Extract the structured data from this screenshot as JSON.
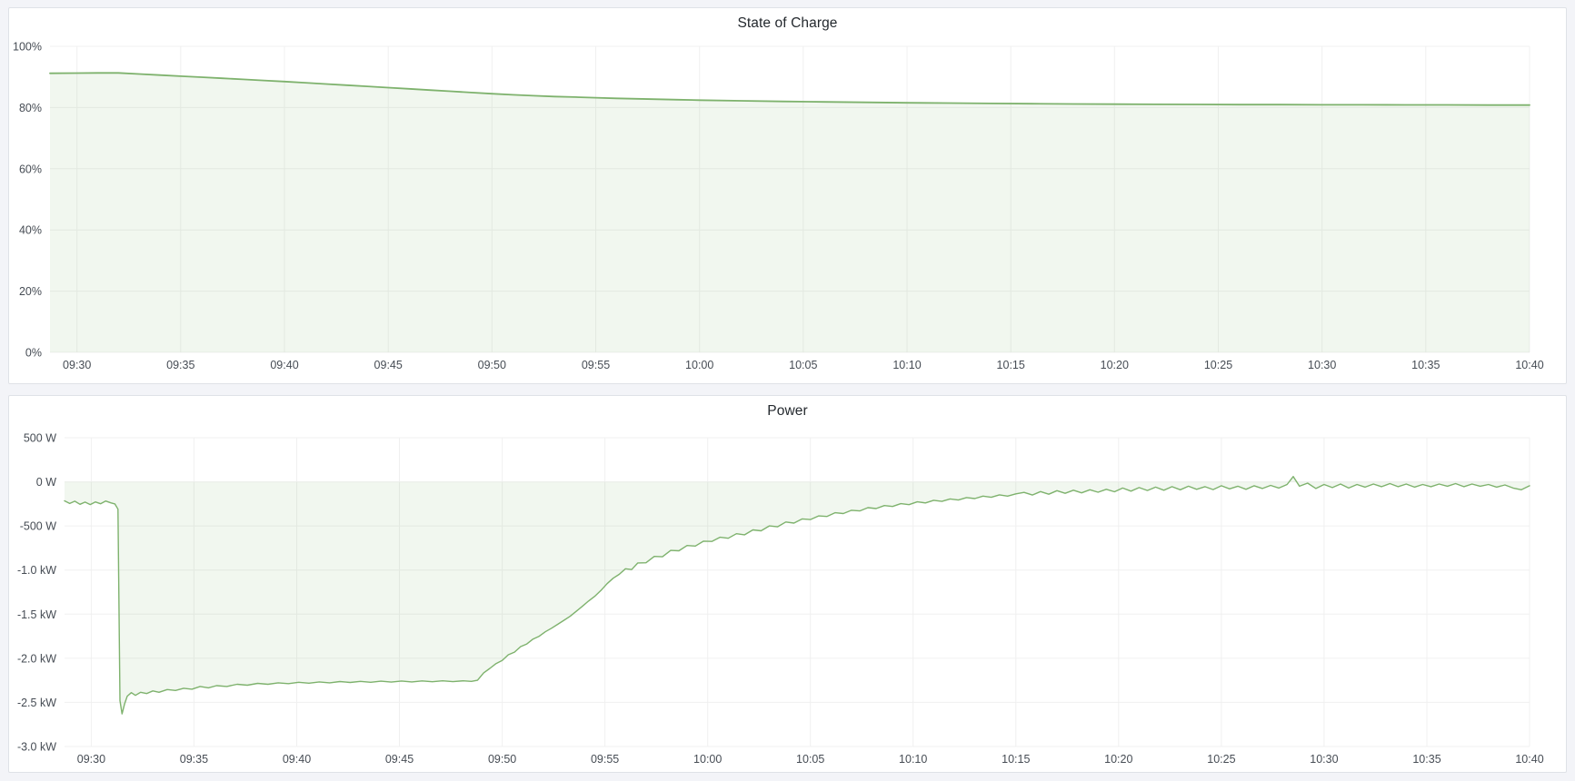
{
  "page": {
    "background_color": "#f3f4f8",
    "panel_background": "#ffffff",
    "panel_border_color": "#dfe2e7",
    "accent_green": "#7eb26d"
  },
  "chart_data": [
    {
      "type": "area",
      "title": "State of Charge",
      "unit": "percent",
      "line_color": "#7eb26d",
      "fill_color": "rgba(126,178,109,0.11)",
      "grid_color": "#f0f0f0",
      "axis_text_color": "#464c54",
      "grid": true,
      "legend_position": "none",
      "ylim": [
        0,
        100
      ],
      "x_range_minutes": [
        -1.3,
        70
      ],
      "baseline": 0,
      "y_ticks": [
        {
          "value": 100,
          "label": "100%"
        },
        {
          "value": 80,
          "label": "80%"
        },
        {
          "value": 60,
          "label": "60%"
        },
        {
          "value": 40,
          "label": "40%"
        },
        {
          "value": 20,
          "label": "20%"
        },
        {
          "value": 0,
          "label": "0%"
        }
      ],
      "x_tick_minutes": [
        0,
        5,
        10,
        15,
        20,
        25,
        30,
        35,
        40,
        45,
        50,
        55,
        60,
        65,
        70
      ],
      "x_tick_labels": [
        "09:30",
        "09:35",
        "09:40",
        "09:45",
        "09:50",
        "09:55",
        "10:00",
        "10:05",
        "10:10",
        "10:15",
        "10:20",
        "10:25",
        "10:30",
        "10:35",
        "10:40"
      ],
      "series": [
        {
          "name": "State of Charge",
          "points": [
            [
              -1.3,
              91.2
            ],
            [
              0,
              91.25
            ],
            [
              1,
              91.3
            ],
            [
              2,
              91.3
            ],
            [
              3,
              90.95
            ],
            [
              4,
              90.6
            ],
            [
              5,
              90.25
            ],
            [
              6,
              89.9
            ],
            [
              7,
              89.55
            ],
            [
              8,
              89.2
            ],
            [
              9,
              88.85
            ],
            [
              10,
              88.5
            ],
            [
              11,
              88.1
            ],
            [
              12,
              87.7
            ],
            [
              13,
              87.3
            ],
            [
              14,
              86.9
            ],
            [
              15,
              86.5
            ],
            [
              16,
              86.1
            ],
            [
              17,
              85.7
            ],
            [
              18,
              85.3
            ],
            [
              19,
              84.9
            ],
            [
              20,
              84.5
            ],
            [
              21,
              84.15
            ],
            [
              22,
              83.85
            ],
            [
              23,
              83.6
            ],
            [
              24,
              83.4
            ],
            [
              25,
              83.2
            ],
            [
              26,
              83.0
            ],
            [
              27,
              82.85
            ],
            [
              28,
              82.7
            ],
            [
              29,
              82.55
            ],
            [
              30,
              82.4
            ],
            [
              32,
              82.2
            ],
            [
              34,
              82.0
            ],
            [
              36,
              81.85
            ],
            [
              38,
              81.7
            ],
            [
              40,
              81.55
            ],
            [
              42,
              81.45
            ],
            [
              44,
              81.35
            ],
            [
              46,
              81.25
            ],
            [
              48,
              81.15
            ],
            [
              50,
              81.1
            ],
            [
              52,
              81.05
            ],
            [
              54,
              81.0
            ],
            [
              56,
              80.95
            ],
            [
              58,
              80.95
            ],
            [
              60,
              80.9
            ],
            [
              62,
              80.9
            ],
            [
              64,
              80.85
            ],
            [
              66,
              80.85
            ],
            [
              68,
              80.8
            ],
            [
              70,
              80.8
            ]
          ]
        }
      ]
    },
    {
      "type": "area",
      "title": "Power",
      "unit": "watt",
      "line_color": "#7eb26d",
      "fill_color": "rgba(126,178,109,0.11)",
      "grid_color": "#f0f0f0",
      "axis_text_color": "#464c54",
      "grid": true,
      "legend_position": "none",
      "ylim": [
        -3000,
        500
      ],
      "x_range_minutes": [
        -1.3,
        70
      ],
      "baseline": 0,
      "y_ticks": [
        {
          "value": 500,
          "label": "500 W"
        },
        {
          "value": 0,
          "label": "0 W"
        },
        {
          "value": -500,
          "label": "-500 W"
        },
        {
          "value": -1000,
          "label": "-1.0 kW"
        },
        {
          "value": -1500,
          "label": "-1.5 kW"
        },
        {
          "value": -2000,
          "label": "-2.0 kW"
        },
        {
          "value": -2500,
          "label": "-2.5 kW"
        },
        {
          "value": -3000,
          "label": "-3.0 kW"
        }
      ],
      "x_tick_minutes": [
        0,
        5,
        10,
        15,
        20,
        25,
        30,
        35,
        40,
        45,
        50,
        55,
        60,
        65,
        70
      ],
      "x_tick_labels": [
        "09:30",
        "09:35",
        "09:40",
        "09:45",
        "09:50",
        "09:55",
        "10:00",
        "10:05",
        "10:10",
        "10:15",
        "10:20",
        "10:25",
        "10:30",
        "10:35",
        "10:40"
      ],
      "series": [
        {
          "name": "Power",
          "points": [
            [
              -1.3,
              -215
            ],
            [
              -1.05,
              -245
            ],
            [
              -0.8,
              -220
            ],
            [
              -0.55,
              -255
            ],
            [
              -0.3,
              -230
            ],
            [
              -0.05,
              -258
            ],
            [
              0.2,
              -228
            ],
            [
              0.45,
              -248
            ],
            [
              0.7,
              -218
            ],
            [
              0.95,
              -238
            ],
            [
              1.15,
              -250
            ],
            [
              1.3,
              -310
            ],
            [
              1.4,
              -2480
            ],
            [
              1.5,
              -2630
            ],
            [
              1.62,
              -2520
            ],
            [
              1.75,
              -2430
            ],
            [
              1.95,
              -2390
            ],
            [
              2.15,
              -2420
            ],
            [
              2.4,
              -2385
            ],
            [
              2.7,
              -2400
            ],
            [
              3.0,
              -2370
            ],
            [
              3.3,
              -2385
            ],
            [
              3.7,
              -2355
            ],
            [
              4.1,
              -2365
            ],
            [
              4.5,
              -2340
            ],
            [
              4.9,
              -2350
            ],
            [
              5.3,
              -2320
            ],
            [
              5.7,
              -2335
            ],
            [
              6.1,
              -2310
            ],
            [
              6.6,
              -2320
            ],
            [
              7.1,
              -2295
            ],
            [
              7.6,
              -2305
            ],
            [
              8.1,
              -2285
            ],
            [
              8.6,
              -2295
            ],
            [
              9.1,
              -2278
            ],
            [
              9.6,
              -2288
            ],
            [
              10.1,
              -2272
            ],
            [
              10.6,
              -2282
            ],
            [
              11.1,
              -2268
            ],
            [
              11.6,
              -2278
            ],
            [
              12.1,
              -2264
            ],
            [
              12.6,
              -2274
            ],
            [
              13.1,
              -2262
            ],
            [
              13.6,
              -2272
            ],
            [
              14.1,
              -2260
            ],
            [
              14.6,
              -2270
            ],
            [
              15.1,
              -2258
            ],
            [
              15.6,
              -2268
            ],
            [
              16.1,
              -2257
            ],
            [
              16.6,
              -2266
            ],
            [
              17.1,
              -2256
            ],
            [
              17.6,
              -2265
            ],
            [
              18.1,
              -2256
            ],
            [
              18.5,
              -2262
            ],
            [
              18.8,
              -2250
            ],
            [
              19.1,
              -2165
            ],
            [
              19.4,
              -2115
            ],
            [
              19.7,
              -2060
            ],
            [
              20.0,
              -2025
            ],
            [
              20.3,
              -1960
            ],
            [
              20.6,
              -1930
            ],
            [
              20.9,
              -1868
            ],
            [
              21.2,
              -1838
            ],
            [
              21.5,
              -1782
            ],
            [
              21.8,
              -1750
            ],
            [
              22.1,
              -1700
            ],
            [
              22.4,
              -1660
            ],
            [
              22.7,
              -1615
            ],
            [
              23.0,
              -1570
            ],
            [
              23.3,
              -1525
            ],
            [
              23.6,
              -1468
            ],
            [
              23.9,
              -1412
            ],
            [
              24.2,
              -1352
            ],
            [
              24.5,
              -1298
            ],
            [
              24.8,
              -1232
            ],
            [
              25.1,
              -1155
            ],
            [
              25.4,
              -1092
            ],
            [
              25.7,
              -1048
            ],
            [
              26.0,
              -985
            ],
            [
              26.3,
              -995
            ],
            [
              26.6,
              -920
            ],
            [
              27.0,
              -918
            ],
            [
              27.4,
              -845
            ],
            [
              27.8,
              -850
            ],
            [
              28.2,
              -778
            ],
            [
              28.6,
              -782
            ],
            [
              29.0,
              -722
            ],
            [
              29.4,
              -728
            ],
            [
              29.8,
              -672
            ],
            [
              30.2,
              -676
            ],
            [
              30.6,
              -628
            ],
            [
              31.0,
              -640
            ],
            [
              31.4,
              -588
            ],
            [
              31.8,
              -600
            ],
            [
              32.2,
              -545
            ],
            [
              32.6,
              -555
            ],
            [
              33.0,
              -500
            ],
            [
              33.4,
              -510
            ],
            [
              33.8,
              -455
            ],
            [
              34.2,
              -468
            ],
            [
              34.6,
              -420
            ],
            [
              35.0,
              -428
            ],
            [
              35.4,
              -386
            ],
            [
              35.8,
              -393
            ],
            [
              36.2,
              -350
            ],
            [
              36.6,
              -360
            ],
            [
              37.0,
              -322
            ],
            [
              37.4,
              -330
            ],
            [
              37.8,
              -293
            ],
            [
              38.2,
              -303
            ],
            [
              38.6,
              -269
            ],
            [
              39.0,
              -279
            ],
            [
              39.4,
              -247
            ],
            [
              39.8,
              -259
            ],
            [
              40.2,
              -227
            ],
            [
              40.6,
              -239
            ],
            [
              41.0,
              -209
            ],
            [
              41.4,
              -222
            ],
            [
              41.8,
              -194
            ],
            [
              42.2,
              -206
            ],
            [
              42.6,
              -178
            ],
            [
              43.0,
              -190
            ],
            [
              43.4,
              -162
            ],
            [
              43.8,
              -175
            ],
            [
              44.2,
              -148
            ],
            [
              44.6,
              -162
            ],
            [
              45.0,
              -136
            ],
            [
              45.4,
              -120
            ],
            [
              45.8,
              -150
            ],
            [
              46.2,
              -110
            ],
            [
              46.6,
              -140
            ],
            [
              47.0,
              -100
            ],
            [
              47.4,
              -130
            ],
            [
              47.8,
              -95
            ],
            [
              48.2,
              -125
            ],
            [
              48.6,
              -90
            ],
            [
              49.0,
              -118
            ],
            [
              49.4,
              -85
            ],
            [
              49.8,
              -112
            ],
            [
              50.2,
              -70
            ],
            [
              50.6,
              -105
            ],
            [
              51.0,
              -65
            ],
            [
              51.4,
              -98
            ],
            [
              51.8,
              -60
            ],
            [
              52.2,
              -95
            ],
            [
              52.6,
              -55
            ],
            [
              53.0,
              -90
            ],
            [
              53.4,
              -50
            ],
            [
              53.8,
              -85
            ],
            [
              54.2,
              -55
            ],
            [
              54.6,
              -88
            ],
            [
              55.0,
              -45
            ],
            [
              55.4,
              -80
            ],
            [
              55.8,
              -50
            ],
            [
              56.2,
              -85
            ],
            [
              56.6,
              -45
            ],
            [
              57.0,
              -75
            ],
            [
              57.4,
              -40
            ],
            [
              57.8,
              -70
            ],
            [
              58.2,
              -30
            ],
            [
              58.5,
              60
            ],
            [
              58.8,
              -50
            ],
            [
              59.2,
              -15
            ],
            [
              59.6,
              -75
            ],
            [
              60.0,
              -30
            ],
            [
              60.4,
              -65
            ],
            [
              60.8,
              -25
            ],
            [
              61.2,
              -70
            ],
            [
              61.6,
              -30
            ],
            [
              62.0,
              -60
            ],
            [
              62.4,
              -25
            ],
            [
              62.8,
              -55
            ],
            [
              63.2,
              -20
            ],
            [
              63.6,
              -55
            ],
            [
              64.0,
              -25
            ],
            [
              64.4,
              -60
            ],
            [
              64.8,
              -30
            ],
            [
              65.2,
              -55
            ],
            [
              65.6,
              -25
            ],
            [
              66.0,
              -50
            ],
            [
              66.4,
              -20
            ],
            [
              66.8,
              -55
            ],
            [
              67.2,
              -25
            ],
            [
              67.6,
              -50
            ],
            [
              68.0,
              -30
            ],
            [
              68.4,
              -60
            ],
            [
              68.8,
              -35
            ],
            [
              69.2,
              -70
            ],
            [
              69.6,
              -90
            ],
            [
              70.0,
              -45
            ]
          ]
        }
      ]
    }
  ]
}
